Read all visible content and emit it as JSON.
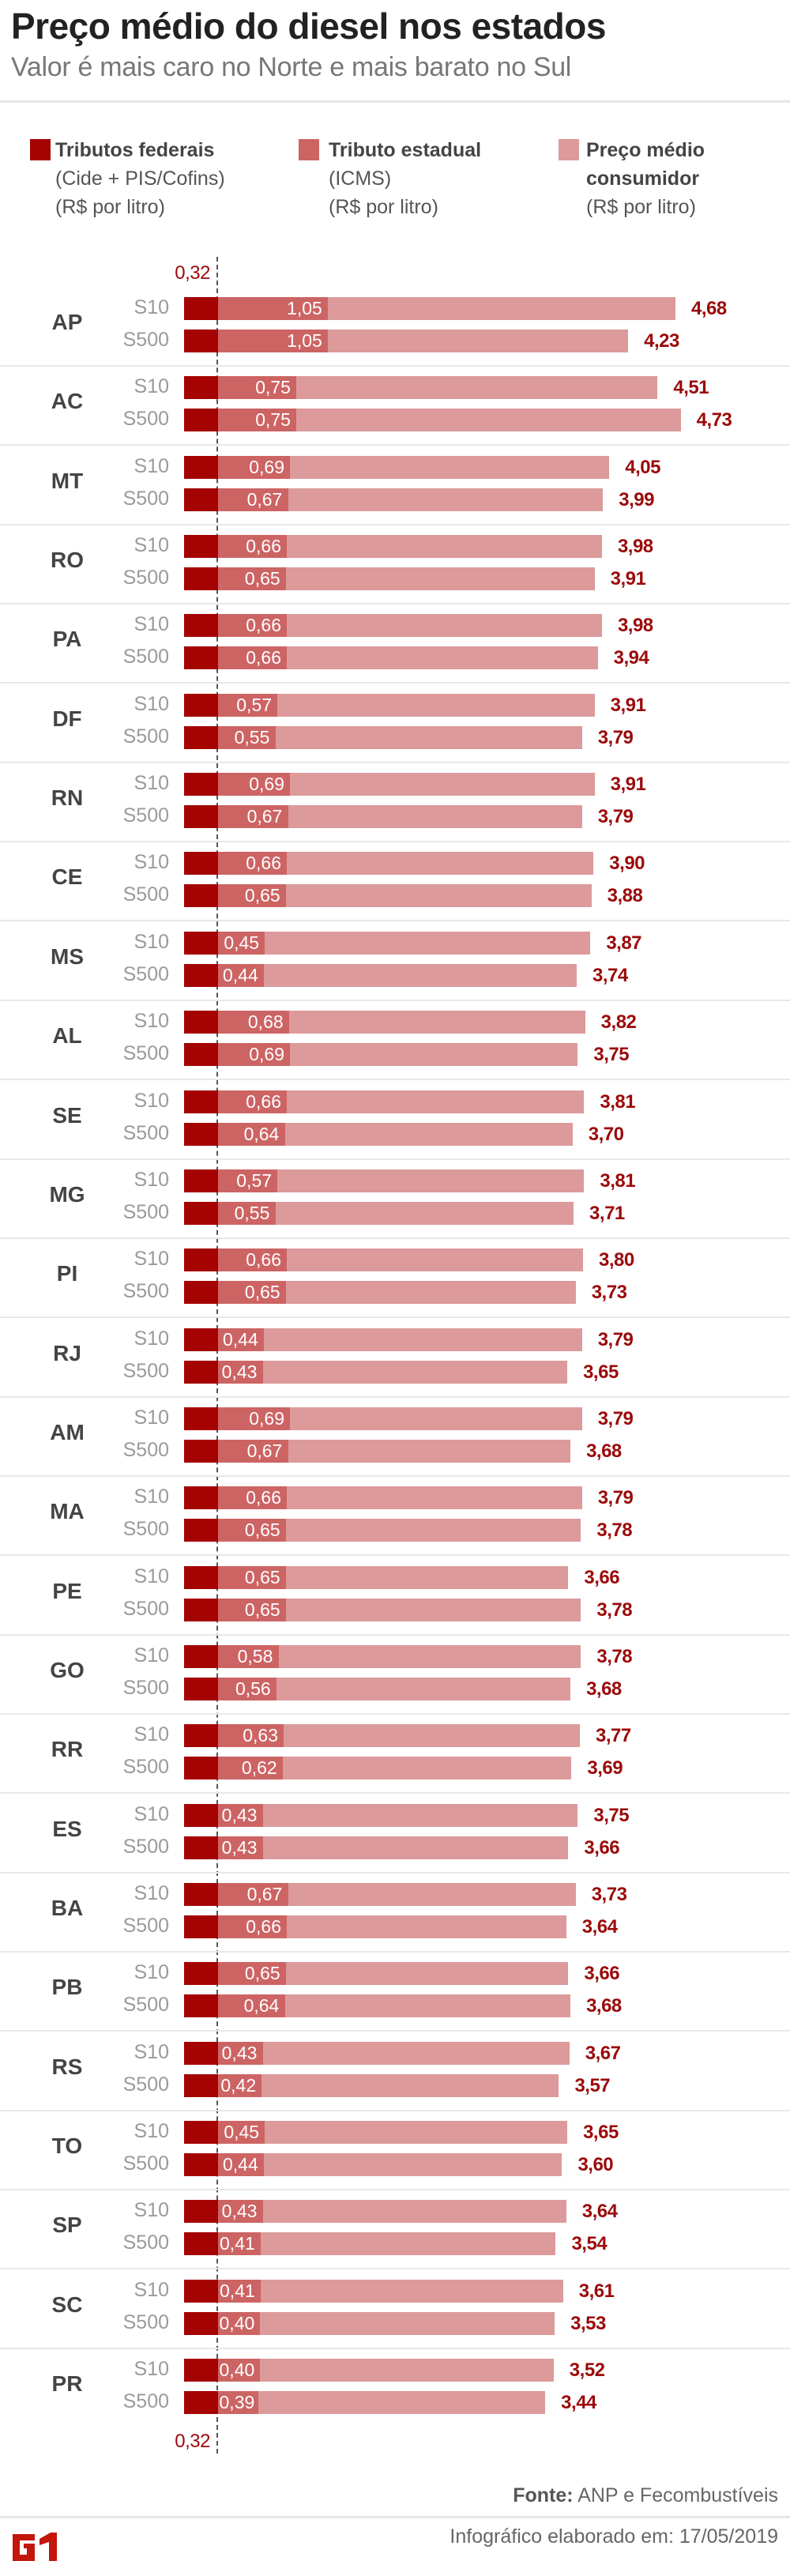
{
  "header": {
    "title": "Preço médio do diesel nos estados",
    "subtitle": "Valor é mais caro no Norte e mais barato no Sul"
  },
  "legend": [
    {
      "line1": "Tributos federais",
      "line2": "(Cide + PIS/Cofins)",
      "line3": "(R$ por litro)",
      "color": "#a50202"
    },
    {
      "line1": "Tributo estadual",
      "line2": "(ICMS)",
      "line3": "(R$ por litro)",
      "color": "#cd6464"
    },
    {
      "line1": "Preço médio",
      "line2": "consumidor",
      "line3": "(R$ por litro)",
      "color": "#dc9a9b"
    }
  ],
  "footer": {
    "source_label": "Fonte:",
    "source": "ANP e Fecombustíveis",
    "made": "Infográfico elaborado em: 17/05/2019",
    "logo": "G1"
  },
  "chart_data": {
    "type": "bar",
    "orientation": "horizontal-stacked",
    "unit": "R$ por litro",
    "federal_tax_label": "0,32",
    "federal_tax": 0.32,
    "fuels": [
      "S10",
      "S500"
    ],
    "series": [
      {
        "name": "Tributos federais",
        "color": "#a50202"
      },
      {
        "name": "Tributo estadual",
        "color": "#cd6464"
      },
      {
        "name": "Preço médio consumidor",
        "color": "#dc9a9b"
      }
    ],
    "states": [
      {
        "state": "AP",
        "S10": {
          "icms": 1.05,
          "price": 4.68
        },
        "S500": {
          "icms": 1.05,
          "price": 4.23
        }
      },
      {
        "state": "AC",
        "S10": {
          "icms": 0.75,
          "price": 4.51
        },
        "S500": {
          "icms": 0.75,
          "price": 4.73
        }
      },
      {
        "state": "MT",
        "S10": {
          "icms": 0.69,
          "price": 4.05
        },
        "S500": {
          "icms": 0.67,
          "price": 3.99
        }
      },
      {
        "state": "RO",
        "S10": {
          "icms": 0.66,
          "price": 3.98
        },
        "S500": {
          "icms": 0.65,
          "price": 3.91
        }
      },
      {
        "state": "PA",
        "S10": {
          "icms": 0.66,
          "price": 3.98
        },
        "S500": {
          "icms": 0.66,
          "price": 3.94
        }
      },
      {
        "state": "DF",
        "S10": {
          "icms": 0.57,
          "price": 3.91
        },
        "S500": {
          "icms": 0.55,
          "price": 3.79
        }
      },
      {
        "state": "RN",
        "S10": {
          "icms": 0.69,
          "price": 3.91
        },
        "S500": {
          "icms": 0.67,
          "price": 3.79
        }
      },
      {
        "state": "CE",
        "S10": {
          "icms": 0.66,
          "price": 3.9
        },
        "S500": {
          "icms": 0.65,
          "price": 3.88
        }
      },
      {
        "state": "MS",
        "S10": {
          "icms": 0.45,
          "price": 3.87
        },
        "S500": {
          "icms": 0.44,
          "price": 3.74
        }
      },
      {
        "state": "AL",
        "S10": {
          "icms": 0.68,
          "price": 3.82
        },
        "S500": {
          "icms": 0.69,
          "price": 3.75
        }
      },
      {
        "state": "SE",
        "S10": {
          "icms": 0.66,
          "price": 3.81
        },
        "S500": {
          "icms": 0.64,
          "price": 3.7
        }
      },
      {
        "state": "MG",
        "S10": {
          "icms": 0.57,
          "price": 3.81
        },
        "S500": {
          "icms": 0.55,
          "price": 3.71
        }
      },
      {
        "state": "PI",
        "S10": {
          "icms": 0.66,
          "price": 3.8
        },
        "S500": {
          "icms": 0.65,
          "price": 3.73
        }
      },
      {
        "state": "RJ",
        "S10": {
          "icms": 0.44,
          "price": 3.79
        },
        "S500": {
          "icms": 0.43,
          "price": 3.65
        }
      },
      {
        "state": "AM",
        "S10": {
          "icms": 0.69,
          "price": 3.79
        },
        "S500": {
          "icms": 0.67,
          "price": 3.68
        }
      },
      {
        "state": "MA",
        "S10": {
          "icms": 0.66,
          "price": 3.79
        },
        "S500": {
          "icms": 0.65,
          "price": 3.78
        }
      },
      {
        "state": "PE",
        "S10": {
          "icms": 0.65,
          "price": 3.66
        },
        "S500": {
          "icms": 0.65,
          "price": 3.78
        }
      },
      {
        "state": "GO",
        "S10": {
          "icms": 0.58,
          "price": 3.78
        },
        "S500": {
          "icms": 0.56,
          "price": 3.68
        }
      },
      {
        "state": "RR",
        "S10": {
          "icms": 0.63,
          "price": 3.77
        },
        "S500": {
          "icms": 0.62,
          "price": 3.69
        }
      },
      {
        "state": "ES",
        "S10": {
          "icms": 0.43,
          "price": 3.75
        },
        "S500": {
          "icms": 0.43,
          "price": 3.66
        }
      },
      {
        "state": "BA",
        "S10": {
          "icms": 0.67,
          "price": 3.73
        },
        "S500": {
          "icms": 0.66,
          "price": 3.64
        }
      },
      {
        "state": "PB",
        "S10": {
          "icms": 0.65,
          "price": 3.66
        },
        "S500": {
          "icms": 0.64,
          "price": 3.68
        }
      },
      {
        "state": "RS",
        "S10": {
          "icms": 0.43,
          "price": 3.67
        },
        "S500": {
          "icms": 0.42,
          "price": 3.57
        }
      },
      {
        "state": "TO",
        "S10": {
          "icms": 0.45,
          "price": 3.65
        },
        "S500": {
          "icms": 0.44,
          "price": 3.6
        }
      },
      {
        "state": "SP",
        "S10": {
          "icms": 0.43,
          "price": 3.64
        },
        "S500": {
          "icms": 0.41,
          "price": 3.54
        }
      },
      {
        "state": "SC",
        "S10": {
          "icms": 0.41,
          "price": 3.61
        },
        "S500": {
          "icms": 0.4,
          "price": 3.53
        }
      },
      {
        "state": "PR",
        "S10": {
          "icms": 0.4,
          "price": 3.52
        },
        "S500": {
          "icms": 0.39,
          "price": 3.44
        }
      }
    ]
  }
}
